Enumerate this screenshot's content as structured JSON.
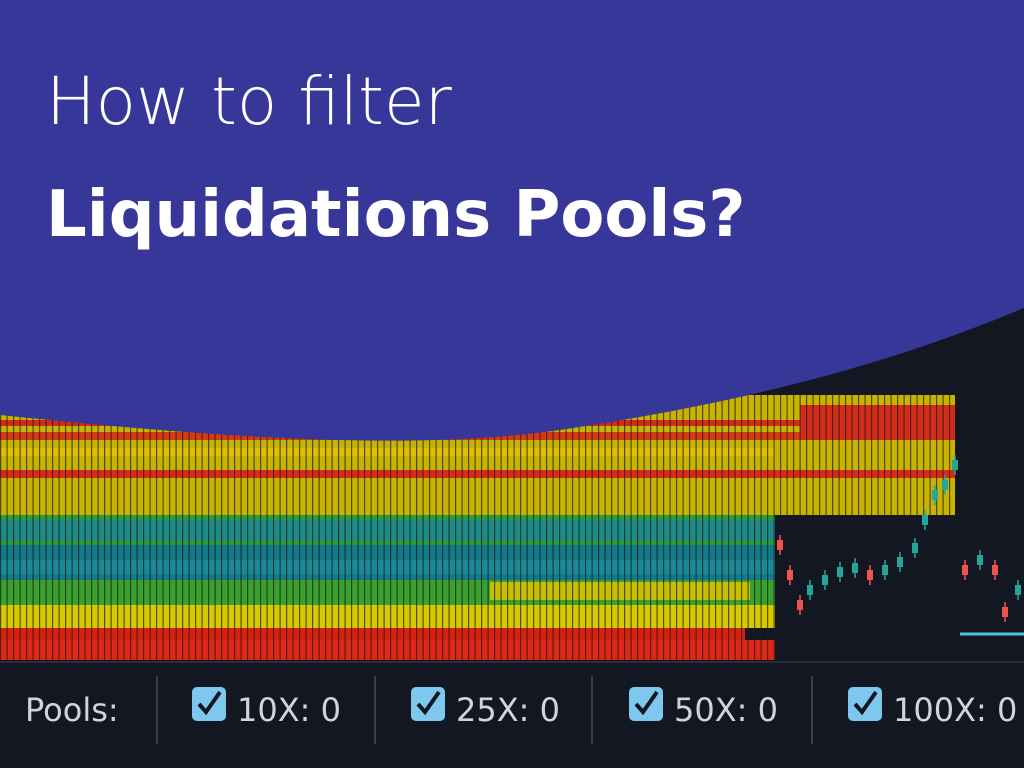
{
  "header": {
    "line1": "How to filter",
    "line2": "Liquidations Pools?"
  },
  "toolbar": {
    "label": "Pools:",
    "filters": [
      {
        "text": "10X: 0",
        "checked": true
      },
      {
        "text": "25X: 0",
        "checked": true
      },
      {
        "text": "50X: 0",
        "checked": true
      },
      {
        "text": "100X: 0",
        "checked": true
      }
    ]
  }
}
